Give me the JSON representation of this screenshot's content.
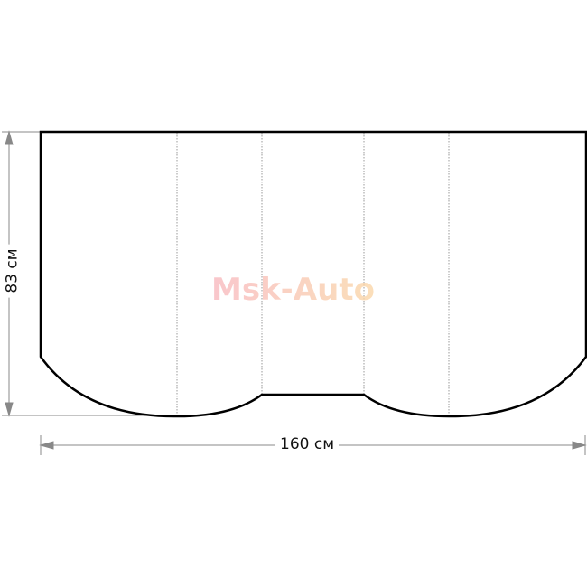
{
  "dimensions": {
    "width_label": "160 см",
    "height_label": "83 см"
  },
  "watermark": "Msk-Auto",
  "colors": {
    "outline": "#000000",
    "dimension_lines": "#888888",
    "fold_lines": "#999999"
  }
}
